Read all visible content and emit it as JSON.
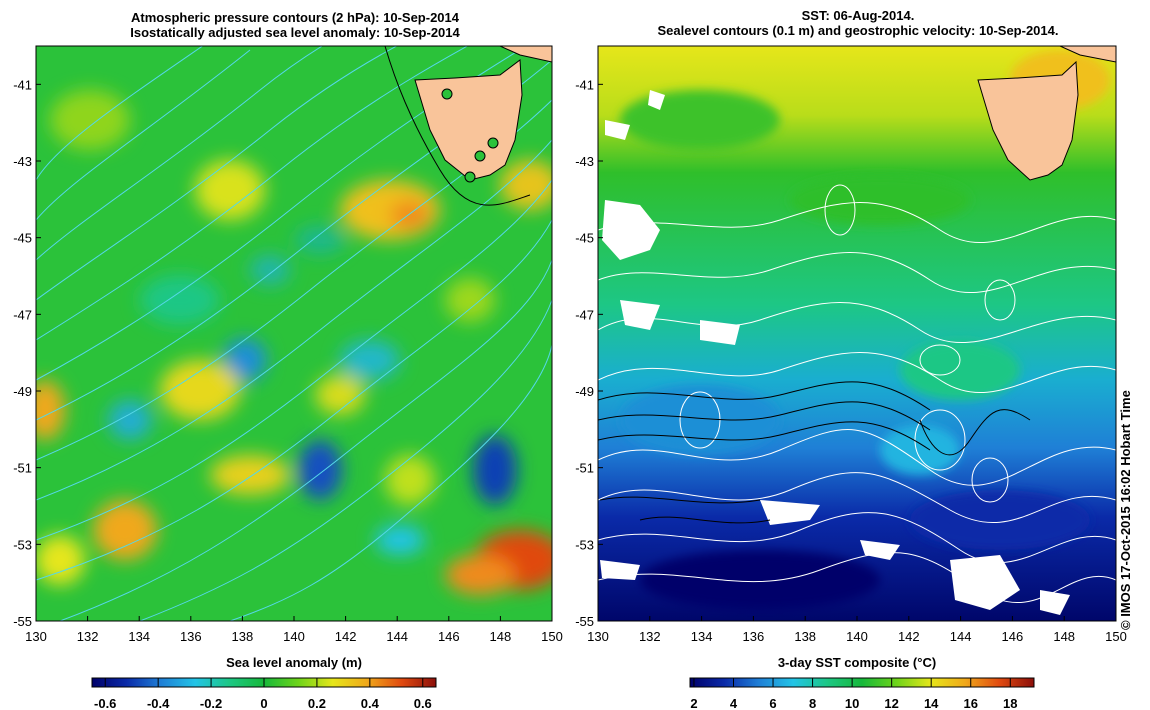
{
  "left_panel": {
    "title_line1": "Atmospheric pressure contours (2 hPa): 10-Sep-2014",
    "title_line2": "Isostatically adjusted sea level anomaly: 10-Sep-2014",
    "x_ticks": [
      "130",
      "132",
      "134",
      "136",
      "138",
      "140",
      "142",
      "144",
      "146",
      "148",
      "150"
    ],
    "y_ticks": [
      "-41",
      "-43",
      "-45",
      "-47",
      "-49",
      "-51",
      "-53",
      "-55"
    ],
    "colorbar_label": "Sea level anomaly (m)",
    "colorbar_ticks": [
      "-0.6",
      "-0.4",
      "-0.2",
      "0",
      "0.2",
      "0.4",
      "0.6"
    ]
  },
  "right_panel": {
    "title_line1": "SST: 06-Aug-2014.",
    "title_line2": "Sealevel contours (0.1 m) and geostrophic velocity: 10-Sep-2014.",
    "x_ticks": [
      "130",
      "132",
      "134",
      "136",
      "138",
      "140",
      "142",
      "144",
      "146",
      "148",
      "150"
    ],
    "y_ticks": [
      "-41",
      "-43",
      "-45",
      "-47",
      "-49",
      "-51",
      "-53",
      "-55"
    ],
    "colorbar_label": "3-day SST composite (°C)",
    "colorbar_ticks": [
      "2",
      "4",
      "6",
      "8",
      "10",
      "12",
      "14",
      "16",
      "18"
    ]
  },
  "credit": "© IMOS 17-Oct-2015 16:02 Hobart Time",
  "map_extent": {
    "lon": [
      130,
      150
    ],
    "lat": [
      -55,
      -40
    ]
  },
  "colors": {
    "land": "#f9c49a",
    "sla_contour": "#55d8e8",
    "sst_contour": "#ffffff"
  },
  "sla_colormap": [
    "#00006a",
    "#0a2aa8",
    "#1f7fd6",
    "#23c4e6",
    "#1dc785",
    "#16b83a",
    "#6ed41a",
    "#e6e61a",
    "#f0a81a",
    "#e04a10",
    "#8c0f0a"
  ],
  "sst_colormap": [
    "#00006a",
    "#0a2aa8",
    "#1f7fd6",
    "#23c4e6",
    "#1dc785",
    "#16b83a",
    "#6ed41a",
    "#e6e61a",
    "#f0a81a",
    "#e04a10",
    "#8c0f0a"
  ]
}
